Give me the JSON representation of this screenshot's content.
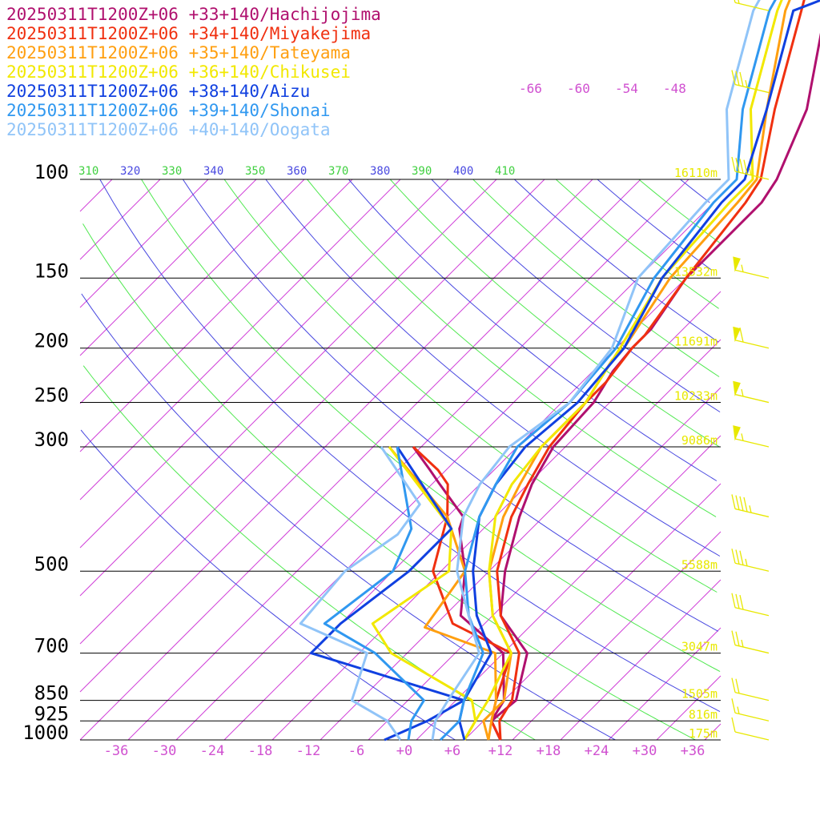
{
  "chart_data": {
    "type": "line",
    "title": "",
    "xlabel": "",
    "ylabel": "",
    "x_unit": "°C",
    "y_scale": "log-pressure (hPa)",
    "xlim": [
      -40,
      40
    ],
    "ylim": [
      1000,
      100
    ],
    "y_ticks": [
      {
        "value": 100,
        "label": "100"
      },
      {
        "value": 150,
        "label": "150"
      },
      {
        "value": 200,
        "label": "200"
      },
      {
        "value": 250,
        "label": "250"
      },
      {
        "value": 300,
        "label": "300"
      },
      {
        "value": 500,
        "label": "500"
      },
      {
        "value": 700,
        "label": "700"
      },
      {
        "value": 850,
        "label": "850"
      },
      {
        "value": 925,
        "label": "925"
      },
      {
        "value": 1000,
        "label": "1000"
      }
    ],
    "x_ticks": [
      {
        "value": -36,
        "label": "-36"
      },
      {
        "value": -30,
        "label": "-30"
      },
      {
        "value": -24,
        "label": "-24"
      },
      {
        "value": -18,
        "label": "-18"
      },
      {
        "value": -12,
        "label": "-12"
      },
      {
        "value": -6,
        "label": "-6"
      },
      {
        "value": 0,
        "label": "+0"
      },
      {
        "value": 6,
        "label": "+6"
      },
      {
        "value": 12,
        "label": "+12"
      },
      {
        "value": 18,
        "label": "+18"
      },
      {
        "value": 24,
        "label": "+24"
      },
      {
        "value": 30,
        "label": "+30"
      },
      {
        "value": 36,
        "label": "+36"
      }
    ],
    "height_labels": [
      {
        "p": 100,
        "label": "16110m"
      },
      {
        "p": 150,
        "label": "13532m"
      },
      {
        "p": 200,
        "label": "11691m"
      },
      {
        "p": 250,
        "label": "10233m"
      },
      {
        "p": 300,
        "label": "9086m"
      },
      {
        "p": 500,
        "label": "5588m"
      },
      {
        "p": 700,
        "label": "3047m"
      },
      {
        "p": 850,
        "label": "1505m"
      },
      {
        "p": 925,
        "label": "816m"
      },
      {
        "p": 1000,
        "label": "175m"
      }
    ],
    "theta_labels": [
      "310",
      "320",
      "330",
      "340",
      "350",
      "360",
      "370",
      "380",
      "390",
      "400",
      "410"
    ],
    "upper_temp_labels": [
      "-66",
      "-60",
      "-54",
      "-48"
    ],
    "series": [
      {
        "name": "20250311T1200Z+06 +33+140/Hachijojima",
        "color": "#b0106e",
        "temperature": [
          [
            1000,
            12.5
          ],
          [
            925,
            9
          ],
          [
            850,
            9.5
          ],
          [
            700,
            5
          ],
          [
            600,
            -3
          ],
          [
            500,
            -8
          ],
          [
            400,
            -13
          ],
          [
            350,
            -15.5
          ],
          [
            300,
            -17.5
          ],
          [
            250,
            -18
          ],
          [
            220,
            -19.5
          ],
          [
            200,
            -20
          ],
          [
            185,
            -20
          ],
          [
            150,
            -22
          ],
          [
            110,
            -22
          ],
          [
            100,
            -23
          ],
          [
            75,
            -28
          ],
          [
            50,
            -38
          ],
          [
            40,
            -44
          ]
        ],
        "dewpoint": [
          [
            1000,
            12.5
          ],
          [
            925,
            9
          ],
          [
            850,
            8
          ],
          [
            700,
            2
          ],
          [
            600,
            -8
          ],
          [
            500,
            -13
          ],
          [
            420,
            -19
          ],
          [
            400,
            -20
          ],
          [
            350,
            -27
          ],
          [
            330,
            -30
          ],
          [
            300,
            -35
          ]
        ]
      },
      {
        "name": "20250311T1200Z+06 +34+140/Miyakejima",
        "color": "#f03010",
        "temperature": [
          [
            1000,
            12.5
          ],
          [
            925,
            10
          ],
          [
            850,
            9
          ],
          [
            700,
            4
          ],
          [
            600,
            -3
          ],
          [
            500,
            -9
          ],
          [
            400,
            -14
          ],
          [
            350,
            -16
          ],
          [
            300,
            -18
          ],
          [
            250,
            -19
          ],
          [
            230,
            -19
          ],
          [
            200,
            -20
          ],
          [
            190,
            -20
          ],
          [
            150,
            -22
          ],
          [
            110,
            -24
          ],
          [
            100,
            -25
          ],
          [
            75,
            -32
          ],
          [
            50,
            -41
          ],
          [
            40,
            -46
          ]
        ],
        "dewpoint": [
          [
            1000,
            12.5
          ],
          [
            925,
            9
          ],
          [
            850,
            7
          ],
          [
            700,
            3
          ],
          [
            620,
            -8
          ],
          [
            500,
            -17
          ],
          [
            400,
            -22
          ],
          [
            350,
            -26
          ],
          [
            330,
            -29
          ],
          [
            300,
            -35
          ]
        ]
      },
      {
        "name": "20250311T1200Z+06 +35+140/Tateyama",
        "color": "#ff9f10",
        "temperature": [
          [
            1000,
            11
          ],
          [
            925,
            8
          ],
          [
            850,
            8
          ],
          [
            700,
            3
          ],
          [
            600,
            -4
          ],
          [
            500,
            -10
          ],
          [
            400,
            -15
          ],
          [
            350,
            -17
          ],
          [
            300,
            -19
          ],
          [
            250,
            -19
          ],
          [
            210,
            -21
          ],
          [
            200,
            -21
          ],
          [
            150,
            -24
          ],
          [
            110,
            -25
          ],
          [
            100,
            -25.5
          ],
          [
            75,
            -33
          ],
          [
            50,
            -43
          ],
          [
            40,
            -47
          ]
        ],
        "dewpoint": [
          [
            1000,
            11
          ],
          [
            925,
            9
          ],
          [
            850,
            7
          ],
          [
            700,
            1
          ],
          [
            630,
            -11
          ],
          [
            500,
            -13
          ],
          [
            400,
            -22
          ],
          [
            300,
            -38
          ]
        ]
      },
      {
        "name": "20250311T1200Z+06 +36+140/Chikusei",
        "color": "#f2e800",
        "temperature": [
          [
            1000,
            8
          ],
          [
            925,
            7
          ],
          [
            850,
            6
          ],
          [
            700,
            3
          ],
          [
            600,
            -4
          ],
          [
            500,
            -10
          ],
          [
            400,
            -16
          ],
          [
            350,
            -18
          ],
          [
            300,
            -19
          ],
          [
            250,
            -19
          ],
          [
            200,
            -21.5
          ],
          [
            150,
            -25
          ],
          [
            110,
            -26
          ],
          [
            100,
            -26
          ],
          [
            75,
            -35
          ],
          [
            50,
            -44
          ],
          [
            40,
            -48
          ]
        ],
        "dewpoint": [
          [
            1000,
            8
          ],
          [
            925,
            7
          ],
          [
            850,
            4
          ],
          [
            700,
            -12
          ],
          [
            620,
            -18
          ],
          [
            500,
            -15
          ],
          [
            420,
            -20
          ],
          [
            300,
            -38
          ]
        ]
      },
      {
        "name": "20250311T1200Z+06 +38+140/Aizu",
        "color": "#1040e0",
        "temperature": [
          [
            1000,
            8
          ],
          [
            925,
            5
          ],
          [
            850,
            3
          ],
          [
            700,
            0.5
          ],
          [
            600,
            -6
          ],
          [
            500,
            -12
          ],
          [
            400,
            -18
          ],
          [
            350,
            -20
          ],
          [
            300,
            -21
          ],
          [
            250,
            -20
          ],
          [
            200,
            -21
          ],
          [
            150,
            -25
          ],
          [
            110,
            -27
          ],
          [
            100,
            -27
          ],
          [
            75,
            -33
          ],
          [
            50,
            -42
          ],
          [
            48,
            -40
          ],
          [
            40,
            -46
          ]
        ],
        "dewpoint": [
          [
            1000,
            -2
          ],
          [
            925,
            1
          ],
          [
            850,
            3
          ],
          [
            700,
            -22
          ],
          [
            620,
            -22
          ],
          [
            500,
            -20
          ],
          [
            420,
            -20
          ],
          [
            300,
            -37
          ]
        ]
      },
      {
        "name": "20250311T1200Z+06 +39+140/Shonai",
        "color": "#3098f0",
        "temperature": [
          [
            1000,
            5
          ],
          [
            925,
            5
          ],
          [
            850,
            3
          ],
          [
            700,
            -0.5
          ],
          [
            600,
            -7
          ],
          [
            500,
            -13
          ],
          [
            400,
            -18
          ],
          [
            350,
            -20
          ],
          [
            300,
            -22
          ],
          [
            250,
            -21
          ],
          [
            200,
            -22
          ],
          [
            150,
            -26
          ],
          [
            110,
            -28
          ],
          [
            100,
            -28
          ],
          [
            75,
            -36
          ],
          [
            50,
            -45
          ],
          [
            40,
            -48
          ]
        ],
        "dewpoint": [
          [
            1000,
            1
          ],
          [
            925,
            -1
          ],
          [
            850,
            -2
          ],
          [
            700,
            -14
          ],
          [
            620,
            -24
          ],
          [
            500,
            -22
          ],
          [
            420,
            -25
          ],
          [
            300,
            -37
          ]
        ]
      },
      {
        "name": "20250311T1200Z+06 +40+140/Oogata",
        "color": "#90c4f8",
        "temperature": [
          [
            1000,
            4
          ],
          [
            925,
            2
          ],
          [
            850,
            1
          ],
          [
            700,
            -1
          ],
          [
            600,
            -7
          ],
          [
            500,
            -14
          ],
          [
            400,
            -20
          ],
          [
            350,
            -22
          ],
          [
            300,
            -23
          ],
          [
            250,
            -21
          ],
          [
            200,
            -22.5
          ],
          [
            150,
            -28
          ],
          [
            110,
            -29
          ],
          [
            100,
            -29
          ],
          [
            75,
            -38
          ],
          [
            50,
            -47
          ],
          [
            40,
            -50
          ]
        ],
        "dewpoint": [
          [
            1000,
            0
          ],
          [
            925,
            -4
          ],
          [
            850,
            -11
          ],
          [
            700,
            -15
          ],
          [
            620,
            -27
          ],
          [
            500,
            -28
          ],
          [
            430,
            -26
          ],
          [
            380,
            -27
          ],
          [
            300,
            -39
          ]
        ]
      }
    ],
    "wind_barbs": {
      "color": "#e8e800",
      "levels": [
        {
          "p": 1000,
          "speed_kt": 10
        },
        {
          "p": 925,
          "speed_kt": 15
        },
        {
          "p": 850,
          "speed_kt": 20
        },
        {
          "p": 700,
          "speed_kt": 25
        },
        {
          "p": 600,
          "speed_kt": 30
        },
        {
          "p": 500,
          "speed_kt": 35
        },
        {
          "p": 400,
          "speed_kt": 45
        },
        {
          "p": 300,
          "speed_kt": 55
        },
        {
          "p": 250,
          "speed_kt": 55
        },
        {
          "p": 200,
          "speed_kt": 60
        },
        {
          "p": 150,
          "speed_kt": 55
        },
        {
          "p": 100,
          "speed_kt": 45
        },
        {
          "p": 70,
          "speed_kt": 35
        },
        {
          "p": 50,
          "speed_kt": 20
        }
      ]
    },
    "grid": true,
    "legend_position": "top-left"
  }
}
